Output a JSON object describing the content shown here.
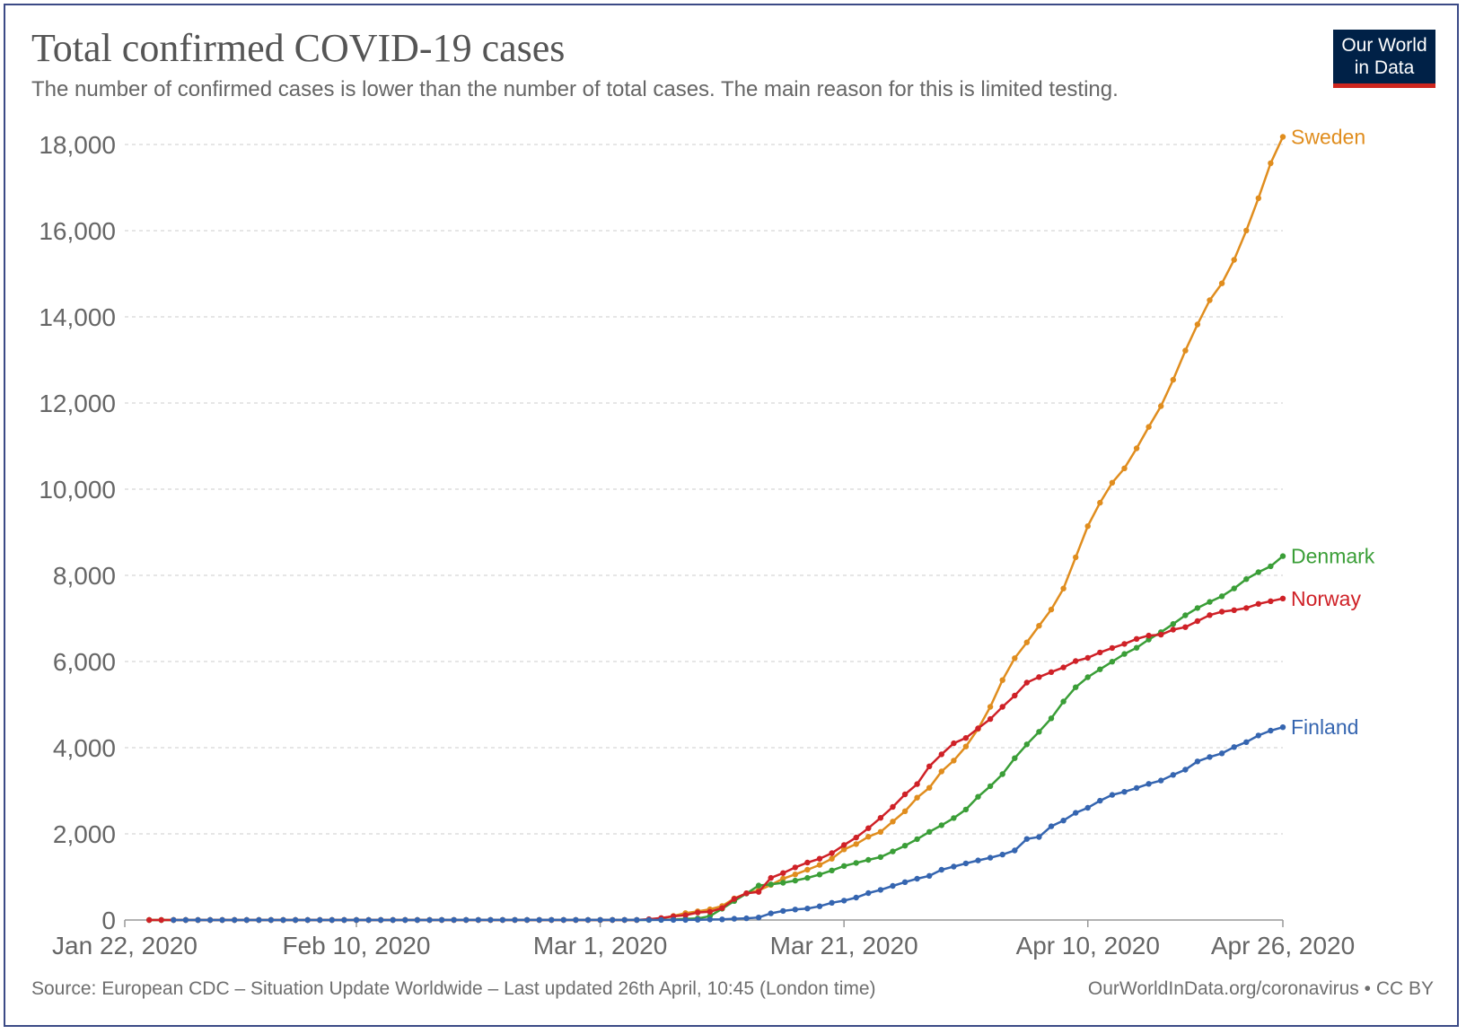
{
  "header": {
    "title": "Total confirmed COVID-19 cases",
    "subtitle": "The number of confirmed cases is lower than the number of total cases. The main reason for this is limited testing."
  },
  "logo": {
    "line1": "Our World",
    "line2": "in Data"
  },
  "footer": {
    "source": "Source: European CDC – Situation Update Worldwide – Last updated 26th April, 10:45 (London time)",
    "credit": "OurWorldInData.org/coronavirus • CC BY"
  },
  "colors": {
    "sweden": "#e08d1e",
    "denmark": "#3a9e37",
    "norway": "#cf2127",
    "finland": "#3565b0",
    "grid": "#dddddd",
    "axis": "#999999"
  },
  "chart_data": {
    "type": "line",
    "title": "Total confirmed COVID-19 cases",
    "subtitle": "The number of confirmed cases is lower than the number of total cases. The main reason for this is limited testing.",
    "xlabel": "",
    "ylabel": "",
    "ylim": [
      0,
      18000
    ],
    "x_range": [
      "2020-01-22",
      "2020-04-26"
    ],
    "y_ticks": [
      0,
      2000,
      4000,
      6000,
      8000,
      10000,
      12000,
      14000,
      16000,
      18000
    ],
    "y_tick_labels": [
      "0",
      "2,000",
      "4,000",
      "6,000",
      "8,000",
      "10,000",
      "12,000",
      "14,000",
      "16,000",
      "18,000"
    ],
    "x_ticks": [
      {
        "day": 0,
        "label": "Jan 22, 2020"
      },
      {
        "day": 19,
        "label": "Feb 10, 2020"
      },
      {
        "day": 39,
        "label": "Mar 1, 2020"
      },
      {
        "day": 59,
        "label": "Mar 21, 2020"
      },
      {
        "day": 79,
        "label": "Apr 10, 2020"
      },
      {
        "day": 95,
        "label": "Apr 26, 2020"
      }
    ],
    "grid": true,
    "legend": "inline-right",
    "series": [
      {
        "name": "Sweden",
        "key": "sweden",
        "points": [
          [
            0,
            0
          ],
          [
            40,
            2
          ],
          [
            41,
            13
          ],
          [
            42,
            35
          ],
          [
            43,
            94
          ],
          [
            44,
            161
          ],
          [
            45,
            203
          ],
          [
            46,
            248
          ],
          [
            47,
            326
          ],
          [
            48,
            500
          ],
          [
            49,
            620
          ],
          [
            50,
            687
          ],
          [
            51,
            814
          ],
          [
            52,
            961
          ],
          [
            53,
            1059
          ],
          [
            54,
            1167
          ],
          [
            55,
            1279
          ],
          [
            56,
            1423
          ],
          [
            57,
            1639
          ],
          [
            58,
            1763
          ],
          [
            59,
            1934
          ],
          [
            60,
            2046
          ],
          [
            61,
            2286
          ],
          [
            62,
            2526
          ],
          [
            63,
            2840
          ],
          [
            64,
            3069
          ],
          [
            65,
            3447
          ],
          [
            66,
            3700
          ],
          [
            67,
            4028
          ],
          [
            68,
            4435
          ],
          [
            69,
            4947
          ],
          [
            70,
            5568
          ],
          [
            71,
            6078
          ],
          [
            72,
            6443
          ],
          [
            73,
            6830
          ],
          [
            74,
            7206
          ],
          [
            75,
            7693
          ],
          [
            76,
            8419
          ],
          [
            77,
            9141
          ],
          [
            78,
            9685
          ],
          [
            79,
            10151
          ],
          [
            80,
            10483
          ],
          [
            81,
            10948
          ],
          [
            82,
            11445
          ],
          [
            83,
            11927
          ],
          [
            84,
            12540
          ],
          [
            85,
            13216
          ],
          [
            86,
            13822
          ],
          [
            87,
            14385
          ],
          [
            88,
            14777
          ],
          [
            89,
            15322
          ],
          [
            90,
            16004
          ],
          [
            91,
            16755
          ],
          [
            92,
            17567
          ],
          [
            93,
            18177
          ]
        ]
      },
      {
        "name": "Denmark",
        "key": "denmark",
        "points": [
          [
            0,
            0
          ],
          [
            40,
            1
          ],
          [
            41,
            3
          ],
          [
            42,
            4
          ],
          [
            43,
            10
          ],
          [
            44,
            24
          ],
          [
            45,
            35
          ],
          [
            46,
            90
          ],
          [
            47,
            262
          ],
          [
            48,
            442
          ],
          [
            49,
            615
          ],
          [
            50,
            801
          ],
          [
            51,
            827
          ],
          [
            52,
            864
          ],
          [
            53,
            914
          ],
          [
            54,
            977
          ],
          [
            55,
            1057
          ],
          [
            56,
            1151
          ],
          [
            57,
            1255
          ],
          [
            58,
            1326
          ],
          [
            59,
            1395
          ],
          [
            60,
            1460
          ],
          [
            61,
            1591
          ],
          [
            62,
            1724
          ],
          [
            63,
            1877
          ],
          [
            64,
            2046
          ],
          [
            65,
            2201
          ],
          [
            66,
            2366
          ],
          [
            67,
            2564
          ],
          [
            68,
            2860
          ],
          [
            69,
            3107
          ],
          [
            70,
            3386
          ],
          [
            71,
            3757
          ],
          [
            72,
            4077
          ],
          [
            73,
            4369
          ],
          [
            74,
            4681
          ],
          [
            75,
            5071
          ],
          [
            76,
            5402
          ],
          [
            77,
            5635
          ],
          [
            78,
            5819
          ],
          [
            79,
            5996
          ],
          [
            80,
            6174
          ],
          [
            81,
            6318
          ],
          [
            82,
            6511
          ],
          [
            83,
            6681
          ],
          [
            84,
            6870
          ],
          [
            85,
            7073
          ],
          [
            86,
            7242
          ],
          [
            87,
            7384
          ],
          [
            88,
            7515
          ],
          [
            89,
            7695
          ],
          [
            90,
            7912
          ],
          [
            91,
            8073
          ],
          [
            92,
            8210
          ],
          [
            93,
            8445
          ]
        ]
      },
      {
        "name": "Norway",
        "key": "norway",
        "points": [
          [
            0,
            0
          ],
          [
            40,
            1
          ],
          [
            41,
            19
          ],
          [
            42,
            46
          ],
          [
            43,
            86
          ],
          [
            44,
            113
          ],
          [
            45,
            176
          ],
          [
            46,
            192
          ],
          [
            47,
            277
          ],
          [
            48,
            489
          ],
          [
            49,
            621
          ],
          [
            50,
            652
          ],
          [
            51,
            977
          ],
          [
            52,
            1090
          ],
          [
            53,
            1221
          ],
          [
            54,
            1333
          ],
          [
            55,
            1423
          ],
          [
            56,
            1552
          ],
          [
            57,
            1741
          ],
          [
            58,
            1914
          ],
          [
            59,
            2132
          ],
          [
            60,
            2371
          ],
          [
            61,
            2625
          ],
          [
            62,
            2916
          ],
          [
            63,
            3155
          ],
          [
            64,
            3566
          ],
          [
            65,
            3845
          ],
          [
            66,
            4102
          ],
          [
            67,
            4226
          ],
          [
            68,
            4447
          ],
          [
            69,
            4665
          ],
          [
            70,
            4947
          ],
          [
            71,
            5208
          ],
          [
            72,
            5510
          ],
          [
            73,
            5640
          ],
          [
            74,
            5755
          ],
          [
            75,
            5863
          ],
          [
            76,
            6010
          ],
          [
            77,
            6086
          ],
          [
            78,
            6211
          ],
          [
            79,
            6314
          ],
          [
            80,
            6409
          ],
          [
            81,
            6525
          ],
          [
            82,
            6603
          ],
          [
            83,
            6623
          ],
          [
            84,
            6740
          ],
          [
            85,
            6798
          ],
          [
            86,
            6937
          ],
          [
            87,
            7078
          ],
          [
            88,
            7156
          ],
          [
            89,
            7191
          ],
          [
            90,
            7241
          ],
          [
            91,
            7338
          ],
          [
            92,
            7401
          ],
          [
            93,
            7463
          ]
        ]
      },
      {
        "name": "Finland",
        "key": "finland",
        "points": [
          [
            0,
            0
          ],
          [
            42,
            2
          ],
          [
            43,
            6
          ],
          [
            44,
            12
          ],
          [
            45,
            15
          ],
          [
            46,
            30
          ],
          [
            47,
            40
          ],
          [
            48,
            59
          ],
          [
            49,
            155
          ],
          [
            50,
            210
          ],
          [
            51,
            244
          ],
          [
            52,
            267
          ],
          [
            53,
            319
          ],
          [
            54,
            400
          ],
          [
            55,
            450
          ],
          [
            56,
            521
          ],
          [
            57,
            626
          ],
          [
            58,
            700
          ],
          [
            59,
            792
          ],
          [
            60,
            880
          ],
          [
            61,
            958
          ],
          [
            62,
            1025
          ],
          [
            63,
            1167
          ],
          [
            64,
            1240
          ],
          [
            65,
            1314
          ],
          [
            66,
            1384
          ],
          [
            67,
            1446
          ],
          [
            68,
            1518
          ],
          [
            69,
            1615
          ],
          [
            70,
            1882
          ],
          [
            71,
            1927
          ],
          [
            72,
            2176
          ],
          [
            73,
            2308
          ],
          [
            74,
            2487
          ],
          [
            75,
            2605
          ],
          [
            76,
            2769
          ],
          [
            77,
            2905
          ],
          [
            78,
            2974
          ],
          [
            79,
            3064
          ],
          [
            80,
            3161
          ],
          [
            81,
            3237
          ],
          [
            82,
            3369
          ],
          [
            83,
            3489
          ],
          [
            84,
            3681
          ],
          [
            85,
            3783
          ],
          [
            86,
            3868
          ],
          [
            87,
            4014
          ],
          [
            88,
            4129
          ],
          [
            89,
            4284
          ],
          [
            90,
            4395
          ],
          [
            91,
            4475
          ]
        ]
      }
    ],
    "series_day_offset": {
      "sweden": 2,
      "denmark": 2,
      "norway": 2,
      "finland": 4
    }
  }
}
